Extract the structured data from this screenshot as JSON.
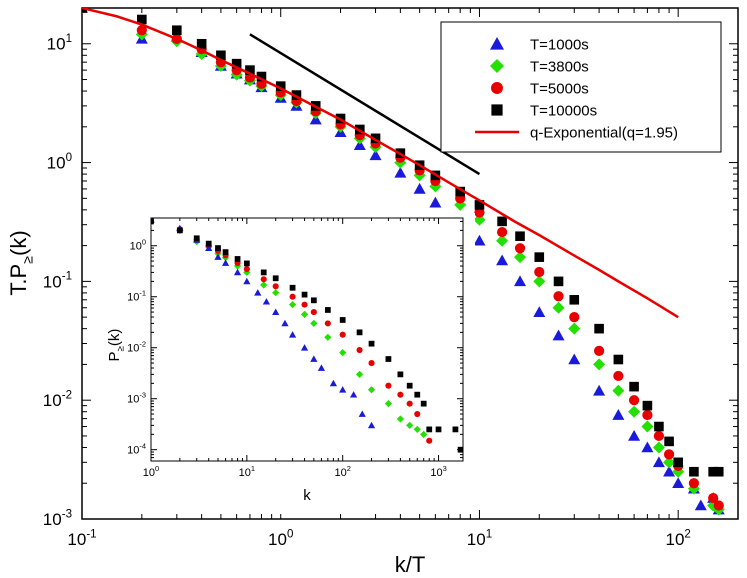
{
  "chart_data": [
    {
      "type": "scatter",
      "xlabel": "k/T",
      "ylabel": "T.P≥(k)",
      "xscale": "log",
      "yscale": "log",
      "xlim": [
        0.1,
        200
      ],
      "ylim": [
        0.001,
        20
      ],
      "x_ticks": [
        {
          "base": "10",
          "exp": "-1",
          "v": 0.1
        },
        {
          "base": "10",
          "exp": "0",
          "v": 1
        },
        {
          "base": "10",
          "exp": "1",
          "v": 10
        },
        {
          "base": "10",
          "exp": "2",
          "v": 100
        }
      ],
      "y_ticks": [
        {
          "base": "10",
          "exp": "-3",
          "v": 0.001
        },
        {
          "base": "10",
          "exp": "-2",
          "v": 0.01
        },
        {
          "base": "10",
          "exp": "-1",
          "v": 0.1
        },
        {
          "base": "10",
          "exp": "0",
          "v": 1
        },
        {
          "base": "10",
          "exp": "1",
          "v": 10
        }
      ],
      "legend_position": "top-right",
      "series": [
        {
          "name": "T=1000s",
          "marker": "triangle",
          "color": "#1a1adb",
          "x": [
            0.1,
            0.2,
            0.3,
            0.4,
            0.5,
            0.6,
            0.7,
            0.8,
            1.0,
            1.2,
            1.5,
            2,
            2.5,
            3,
            4,
            5,
            6,
            8,
            10,
            13,
            16,
            20,
            25,
            30,
            40,
            50,
            60,
            70,
            80,
            90,
            100,
            120,
            130,
            150,
            160
          ],
          "y": [
            20,
            11,
            11.5,
            8.5,
            6.5,
            5.6,
            5.0,
            4.3,
            3.5,
            3.0,
            2.3,
            1.8,
            1.4,
            1.15,
            0.82,
            0.6,
            0.46,
            0.32,
            0.22,
            0.15,
            0.1,
            0.055,
            0.035,
            0.022,
            0.012,
            0.0075,
            0.005,
            0.004,
            0.003,
            0.0025,
            0.002,
            0.0018,
            0.0013,
            0.0015,
            0.0012
          ]
        },
        {
          "name": "T=3800s",
          "marker": "diamond",
          "color": "#22e000",
          "x": [
            0.1,
            0.2,
            0.3,
            0.4,
            0.5,
            0.6,
            0.7,
            0.8,
            1.0,
            1.2,
            1.5,
            2,
            2.5,
            3,
            4,
            5,
            6,
            8,
            10,
            13,
            16,
            20,
            25,
            30,
            40,
            50,
            60,
            70,
            80,
            90,
            100,
            120,
            150,
            160
          ],
          "y": [
            20,
            12,
            10.5,
            8.2,
            6.5,
            5.5,
            4.9,
            4.4,
            3.7,
            3.2,
            2.6,
            2.0,
            1.6,
            1.35,
            1.0,
            0.78,
            0.63,
            0.44,
            0.33,
            0.22,
            0.16,
            0.1,
            0.06,
            0.04,
            0.02,
            0.012,
            0.008,
            0.006,
            0.004,
            0.003,
            0.0025,
            0.0018,
            0.0013,
            0.0012
          ]
        },
        {
          "name": "T=5000s",
          "marker": "circle",
          "color": "#e80000",
          "x": [
            0.1,
            0.2,
            0.3,
            0.4,
            0.5,
            0.6,
            0.7,
            0.8,
            1.0,
            1.2,
            1.5,
            2,
            2.5,
            3,
            4,
            5,
            6,
            8,
            10,
            13,
            16,
            20,
            25,
            30,
            40,
            50,
            60,
            70,
            80,
            90,
            100,
            120,
            150,
            160
          ],
          "y": [
            20,
            13,
            11,
            9,
            7,
            6.0,
            5.2,
            4.6,
            3.9,
            3.3,
            2.7,
            2.1,
            1.7,
            1.45,
            1.1,
            0.86,
            0.7,
            0.5,
            0.38,
            0.26,
            0.19,
            0.12,
            0.075,
            0.05,
            0.026,
            0.016,
            0.01,
            0.0075,
            0.005,
            0.0035,
            0.0028,
            0.002,
            0.0015,
            0.0013
          ]
        },
        {
          "name": "T=10000s",
          "marker": "square",
          "color": "#000000",
          "x": [
            0.1,
            0.2,
            0.3,
            0.4,
            0.5,
            0.6,
            0.7,
            0.8,
            1.0,
            1.2,
            1.5,
            2,
            2.5,
            3,
            4,
            5,
            6,
            8,
            10,
            13,
            16,
            20,
            25,
            30,
            40,
            50,
            60,
            70,
            80,
            90,
            100,
            120,
            150,
            160
          ],
          "y": [
            20,
            16,
            13,
            10,
            8,
            6.8,
            6.0,
            5.3,
            4.4,
            3.7,
            3.0,
            2.35,
            1.9,
            1.6,
            1.2,
            0.95,
            0.78,
            0.57,
            0.44,
            0.32,
            0.24,
            0.16,
            0.1,
            0.07,
            0.04,
            0.022,
            0.013,
            0.009,
            0.006,
            0.0045,
            0.003,
            0.0025,
            0.0025,
            0.0025
          ]
        },
        {
          "name": "q-Exponential(q=1.95)",
          "marker": "line",
          "color": "#e80000",
          "x": [
            0.1,
            0.15,
            0.2,
            0.3,
            0.4,
            0.5,
            0.7,
            1,
            1.5,
            2,
            3,
            4,
            5,
            7,
            10,
            15,
            20,
            30,
            40,
            50,
            70,
            100
          ],
          "y": [
            20,
            17,
            14.5,
            11,
            8.8,
            7.3,
            5.6,
            4.2,
            2.95,
            2.3,
            1.55,
            1.18,
            0.95,
            0.68,
            0.48,
            0.32,
            0.245,
            0.165,
            0.125,
            0.1,
            0.072,
            0.05
          ]
        },
        {
          "marker": "guide-line",
          "color": "#000000",
          "x": [
            0.7,
            10
          ],
          "y": [
            12,
            0.8
          ]
        }
      ]
    },
    {
      "type": "scatter",
      "xlabel": "k",
      "ylabel": "P≥(k)",
      "xscale": "log",
      "yscale": "log",
      "xlim": [
        1,
        1800
      ],
      "ylim": [
        6e-05,
        3.5
      ],
      "x_ticks": [
        {
          "base": "10",
          "exp": "0",
          "v": 1
        },
        {
          "base": "10",
          "exp": "1",
          "v": 10
        },
        {
          "base": "10",
          "exp": "2",
          "v": 100
        },
        {
          "base": "10",
          "exp": "3",
          "v": 1000
        }
      ],
      "y_ticks": [
        {
          "base": "10",
          "exp": "-4",
          "v": 0.0001
        },
        {
          "base": "10",
          "exp": "-3",
          "v": 0.001
        },
        {
          "base": "10",
          "exp": "-2",
          "v": 0.01
        },
        {
          "base": "10",
          "exp": "-1",
          "v": 0.1
        },
        {
          "base": "10",
          "exp": "0",
          "v": 1
        }
      ],
      "series": [
        {
          "name": "T=1000s",
          "marker": "triangle",
          "color": "#1a1adb",
          "x": [
            1,
            2,
            3,
            4,
            5,
            6,
            8,
            10,
            13,
            16,
            20,
            25,
            30,
            40,
            50,
            60,
            80,
            100,
            130,
            160,
            200
          ],
          "y": [
            3.2,
            2.2,
            1.3,
            0.9,
            0.6,
            0.46,
            0.3,
            0.2,
            0.12,
            0.08,
            0.05,
            0.03,
            0.018,
            0.01,
            0.006,
            0.004,
            0.002,
            0.0015,
            0.0012,
            0.0005,
            0.0003
          ]
        },
        {
          "name": "T=3800s",
          "marker": "diamond",
          "color": "#22e000",
          "x": [
            1,
            2,
            3,
            4,
            5,
            6,
            8,
            10,
            15,
            20,
            30,
            40,
            50,
            70,
            100,
            150,
            200,
            300,
            400,
            500,
            600,
            700
          ],
          "y": [
            2.9,
            2.0,
            1.2,
            0.95,
            0.7,
            0.58,
            0.4,
            0.3,
            0.17,
            0.12,
            0.07,
            0.045,
            0.03,
            0.016,
            0.008,
            0.003,
            0.0015,
            0.0008,
            0.0004,
            0.0003,
            0.00025,
            0.0002
          ]
        },
        {
          "name": "T=5000s",
          "marker": "circle",
          "color": "#e80000",
          "x": [
            1,
            2,
            3,
            4,
            5,
            6,
            8,
            10,
            15,
            20,
            30,
            40,
            50,
            70,
            100,
            150,
            200,
            300,
            400,
            500,
            600,
            800
          ],
          "y": [
            3.0,
            2.1,
            1.3,
            1.0,
            0.8,
            0.65,
            0.46,
            0.35,
            0.22,
            0.16,
            0.1,
            0.07,
            0.05,
            0.03,
            0.018,
            0.009,
            0.005,
            0.0018,
            0.0012,
            0.0008,
            0.0005,
            0.00015
          ]
        },
        {
          "name": "T=10000s",
          "marker": "square",
          "color": "#000000",
          "x": [
            1,
            2,
            3,
            4,
            5,
            6,
            8,
            10,
            15,
            20,
            30,
            40,
            50,
            70,
            100,
            150,
            200,
            300,
            400,
            500,
            600,
            700,
            800,
            1000,
            1500,
            1700
          ],
          "y": [
            3.0,
            2.0,
            1.4,
            1.1,
            0.9,
            0.75,
            0.55,
            0.45,
            0.3,
            0.23,
            0.15,
            0.11,
            0.085,
            0.055,
            0.035,
            0.02,
            0.012,
            0.006,
            0.003,
            0.0018,
            0.0012,
            0.0008,
            0.00025,
            0.00025,
            0.00025,
            0.0001
          ]
        }
      ]
    }
  ]
}
